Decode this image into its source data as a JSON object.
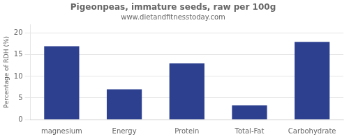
{
  "chart_data": {
    "type": "bar",
    "title": "Pigeonpeas, immature seeds, raw per 100g",
    "subtitle": "www.dietandfitnesstoday.com",
    "categories": [
      "magnesium",
      "Energy",
      "Protein",
      "Total-Fat",
      "Carbohydrate"
    ],
    "values": [
      17,
      7,
      13,
      3.3,
      18
    ],
    "color": "#2d4090",
    "ylabel": "Percentage of RDH (%)",
    "ylim": [
      0,
      22
    ],
    "yticks": [
      0,
      5,
      10,
      15,
      20
    ],
    "grid": true
  }
}
